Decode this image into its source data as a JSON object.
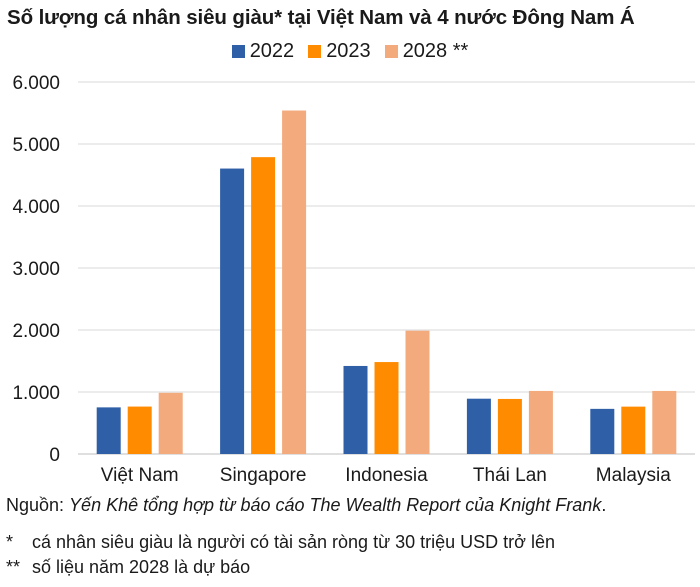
{
  "chart_data": {
    "type": "bar",
    "title": "Số lượng cá nhân siêu giàu* tại Việt Nam và 4 nước Đông Nam Á",
    "categories": [
      "Việt Nam",
      "Singapore",
      "Indonesia",
      "Thái Lan",
      "Malaysia"
    ],
    "series": [
      {
        "name": "2022",
        "color": "#2f5fa7",
        "values": [
          752,
          4604,
          1420,
          892,
          728
        ]
      },
      {
        "name": "2023",
        "color": "#ff8c00",
        "values": [
          765,
          4788,
          1483,
          888,
          764
        ]
      },
      {
        "name": "2028 **",
        "color": "#f3aa7c",
        "values": [
          987,
          5540,
          1989,
          1017,
          1017
        ]
      }
    ],
    "y_ticks": [
      "0",
      "1.000",
      "2.000",
      "3.000",
      "4.000",
      "5.000",
      "6.000"
    ],
    "ylim": [
      0,
      6000
    ],
    "grid": true,
    "xlabel": "",
    "ylabel": "",
    "legend_position": "top-center"
  },
  "source": {
    "prefix": "Nguồn: ",
    "italic": "Yến Khê tổng hợp từ báo cáo The Wealth Report của Knight Frank",
    "suffix": "."
  },
  "notes": [
    {
      "mark": "*",
      "text": "cá nhân siêu giàu là người có tài sản ròng từ 30 triệu USD trở lên"
    },
    {
      "mark": "**",
      "text": "số liệu năm 2028 là dự báo"
    }
  ]
}
